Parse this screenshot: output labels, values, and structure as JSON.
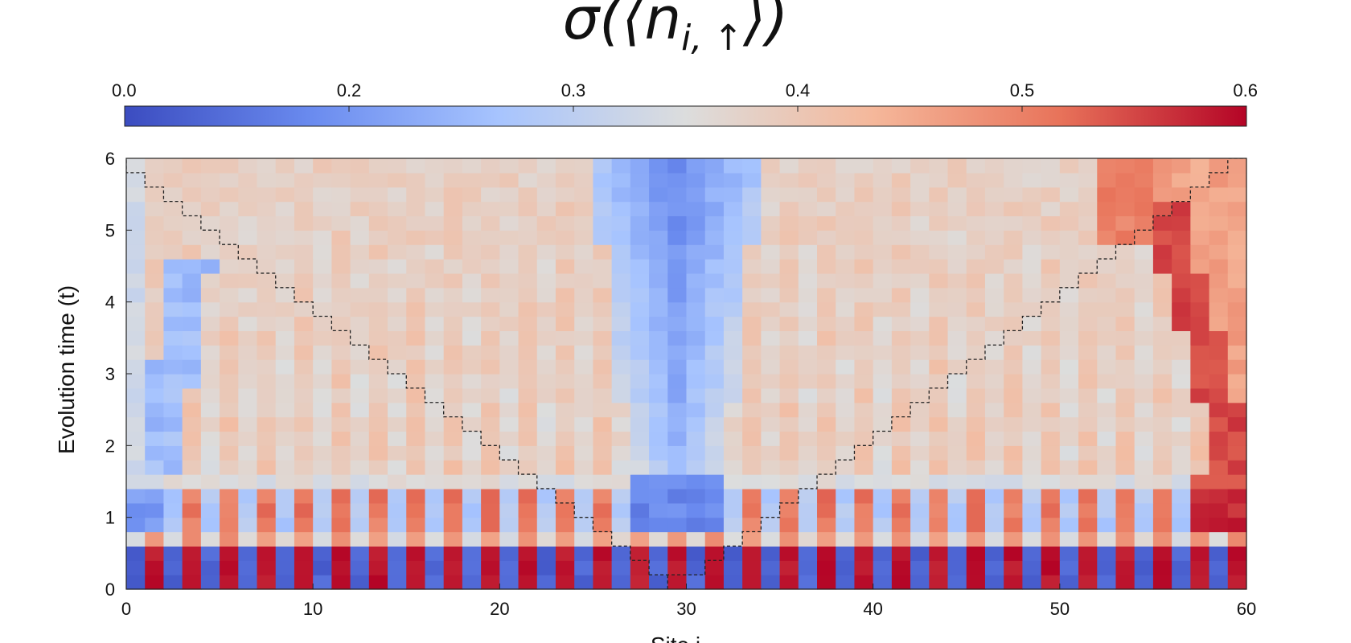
{
  "chart_data": {
    "type": "heatmap",
    "title": "σ(⟨n_{i, ↑}⟩)",
    "title_parts": {
      "sigma": "σ",
      "n": "n",
      "sub": "i, ↑"
    },
    "xlabel": "Site i",
    "ylabel": "Evolution time (t)",
    "x_range": [
      0,
      60
    ],
    "y_range": [
      0,
      6
    ],
    "x_ticks": [
      "0",
      "10",
      "20",
      "30",
      "40",
      "50",
      "60"
    ],
    "y_ticks": [
      "0",
      "1",
      "2",
      "3",
      "4",
      "5",
      "6"
    ],
    "colorbar": {
      "cmap": "coolwarm",
      "tick_labels": [
        "0.0",
        "0.2",
        "0.3",
        "0.4",
        "0.5",
        "0.6"
      ],
      "tick_values": [
        0.0,
        0.2,
        0.3,
        0.4,
        0.5,
        0.6
      ],
      "range": [
        0.0,
        0.6
      ],
      "colors": [
        "#3b4cc0",
        "#6a8bef",
        "#a7c4fe",
        "#dcdddd",
        "#f5b89b",
        "#e8735a",
        "#b40426"
      ]
    },
    "grid": {
      "n_sites": 60,
      "n_time_steps": 30,
      "dt": 0.2
    },
    "value_description": {
      "initial_pattern": "alternating 0.0 / 0.6 by site at t=0",
      "central_dip": "low values (~0.05-0.15) spreading from sites 27-31",
      "right_edge_band": "high values (~0.45-0.55) along sites 53-59 rising from t=0.8 to t=4",
      "background": "~0.30-0.40 for t>1.6"
    },
    "lightcone": {
      "style": "dashed-step",
      "color": "#222222",
      "center_site": 29,
      "base_halfwidth": 2,
      "velocity_sites_per_time": 5
    }
  }
}
